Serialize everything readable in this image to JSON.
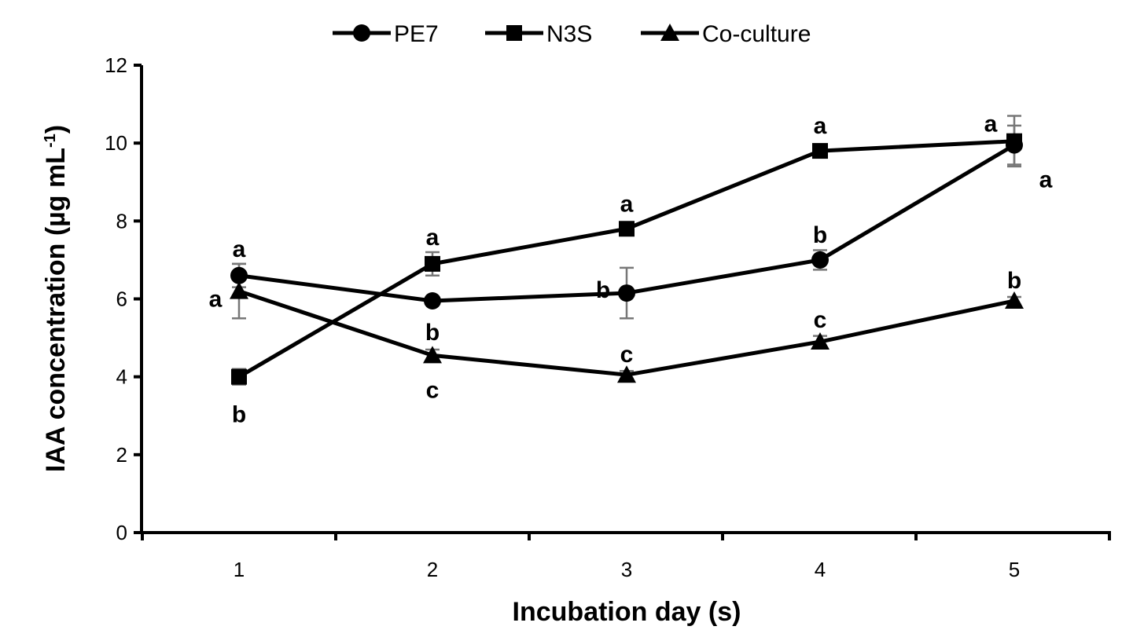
{
  "chart_data": {
    "type": "line",
    "title": "",
    "xlabel": "Incubation day (s)",
    "ylabel_main": "IAA concentration (µg mL",
    "ylabel_sup": "-1",
    "ylabel_end": ")",
    "categories": [
      "1",
      "2",
      "3",
      "4",
      "5"
    ],
    "ylim": [
      0,
      12
    ],
    "yticks": [
      "0",
      "2",
      "4",
      "6",
      "8",
      "10",
      "12"
    ],
    "legend_position": "top-center",
    "series": [
      {
        "name": "PE7",
        "marker": "circle",
        "values": [
          6.6,
          5.95,
          6.15,
          7.0,
          9.95
        ],
        "errors": [
          0.3,
          0.1,
          0.65,
          0.25,
          0.5
        ],
        "letters": [
          "a",
          "b",
          "b",
          "b",
          "a"
        ]
      },
      {
        "name": "N3S",
        "marker": "square",
        "values": [
          4.0,
          6.9,
          7.8,
          9.8,
          10.05
        ],
        "errors": [
          0.2,
          0.3,
          0.1,
          0.1,
          0.65
        ],
        "letters": [
          "b",
          "a",
          "a",
          "a",
          "a"
        ]
      },
      {
        "name": "Co-culture",
        "marker": "triangle",
        "values": [
          6.2,
          4.55,
          4.05,
          4.9,
          5.95
        ],
        "errors": [
          0.7,
          0.15,
          0.1,
          0.15,
          0.1
        ],
        "letters": [
          "a",
          "c",
          "c",
          "c",
          "b"
        ]
      }
    ]
  }
}
